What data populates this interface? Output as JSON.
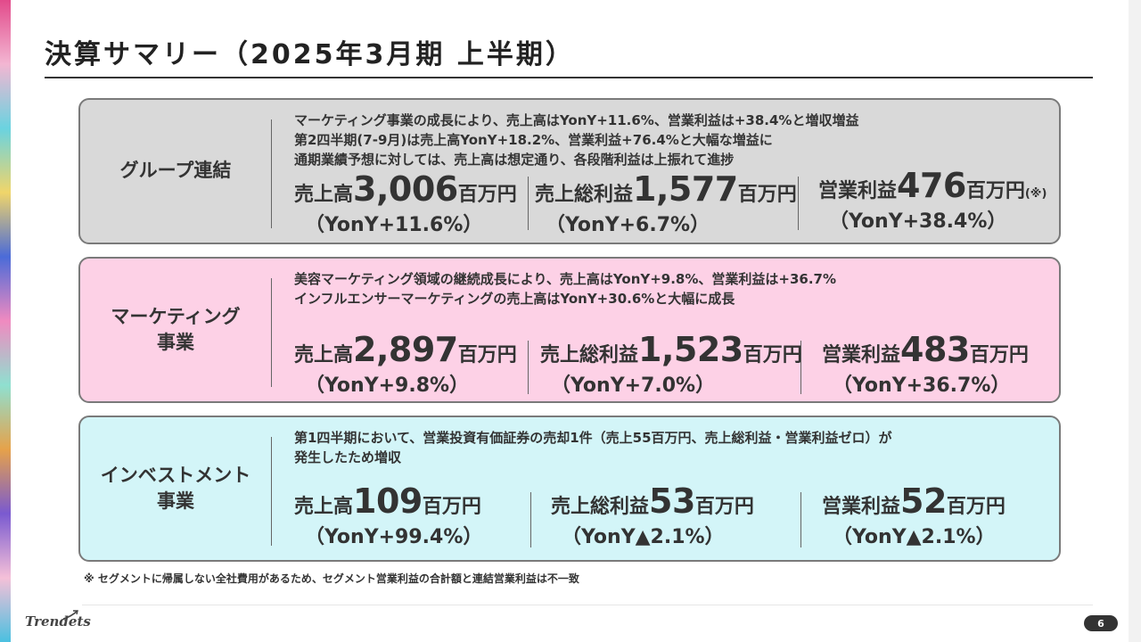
{
  "title": "決算サマリー（2025年3月期 上半期）",
  "segments": {
    "group": {
      "name": "グループ連結",
      "desc": [
        "マーケティング事業の成長により、売上高はYonY+11.6%、営業利益は+38.4%と増収増益",
        "第2四半期(7-9月)は売上高YonY+18.2%、営業利益+76.4%と大幅な増益に",
        "通期業績予想に対しては、売上高は想定通り、各段階利益は上振れて進捗"
      ],
      "metrics": [
        {
          "label": "売上高",
          "value": "3,006",
          "unit": "百万円",
          "note": "",
          "yoy": "（YonY+11.6%）"
        },
        {
          "label": "売上総利益",
          "value": "1,577",
          "unit": "百万円",
          "note": "",
          "yoy": "（YonY+6.7%）"
        },
        {
          "label": "営業利益",
          "value": "476",
          "unit": "百万円",
          "note": "(※)",
          "yoy": "（YonY+38.4%）"
        }
      ]
    },
    "marketing": {
      "name": "マーケティング\n事業",
      "desc": [
        "美容マーケティング領域の継続成長により、売上高はYonY+9.8%、営業利益は+36.7%",
        "インフルエンサーマーケティングの売上高はYonY+30.6%と大幅に成長"
      ],
      "metrics": [
        {
          "label": "売上高",
          "value": "2,897",
          "unit": "百万円",
          "note": "",
          "yoy": "（YonY+9.8%）"
        },
        {
          "label": "売上総利益",
          "value": "1,523",
          "unit": "百万円",
          "note": "",
          "yoy": "（YonY+7.0%）"
        },
        {
          "label": "営業利益",
          "value": "483",
          "unit": "百万円",
          "note": "",
          "yoy": "（YonY+36.7%）"
        }
      ]
    },
    "investment": {
      "name": "インベストメント\n事業",
      "desc": [
        "第1四半期において、営業投資有価証券の売却1件（売上55百万円、売上総利益・営業利益ゼロ）が",
        "発生したため増収"
      ],
      "metrics": [
        {
          "label": "売上高",
          "value": "109",
          "unit": "百万円",
          "note": "",
          "yoy": "（YonY+99.4%）"
        },
        {
          "label": "売上総利益",
          "value": "53",
          "unit": "百万円",
          "note": "",
          "yoy": "（YonY▲2.1%）"
        },
        {
          "label": "営業利益",
          "value": "52",
          "unit": "百万円",
          "note": "",
          "yoy": "（YonY▲2.1%）"
        }
      ]
    }
  },
  "footnote": "※ セグメントに帰属しない全社費用があるため、セグメント営業利益の合計額と連結営業利益は不一致",
  "logo": "Trendets",
  "page_number": "6",
  "colors": {
    "group_bg": "#d9d9d9",
    "marketing_bg": "#fdd1e6",
    "investment_bg": "#d3f5f8"
  }
}
